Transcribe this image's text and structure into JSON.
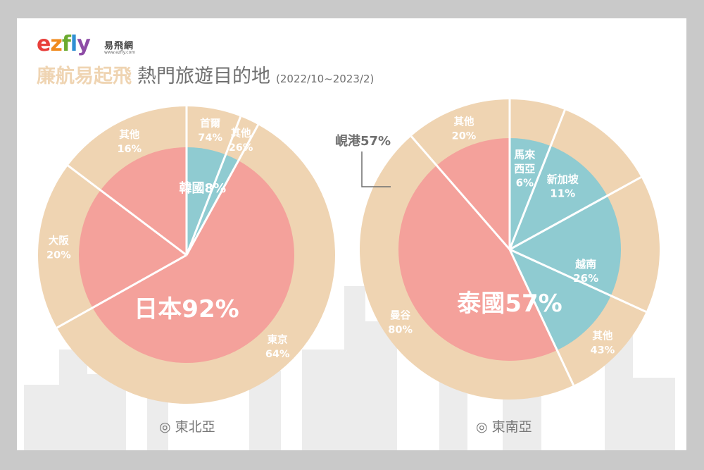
{
  "brand": {
    "logo_text": "ezfly",
    "logo_zh": "易飛網",
    "logo_url": "www.ezfly.com",
    "letter_colors": [
      "#e83f3b",
      "#f08a1c",
      "#6aaa2e",
      "#2f8fd2",
      "#8e4ca6"
    ]
  },
  "title": {
    "accent": "廉航易起飛",
    "main": "熱門旅遊目的地",
    "period": "(2022/10~2023/2)"
  },
  "colors": {
    "outer": "#efd4b2",
    "main": "#f4a19b",
    "other": "#8fcbd1",
    "divider": "#ffffff"
  },
  "chart_data": [
    {
      "type": "pie",
      "region": "◎ 東北亞",
      "inner": [
        {
          "name": "日本",
          "value": 92,
          "label": "日本92%"
        },
        {
          "name": "韓國",
          "value": 8,
          "label": "韓國8%"
        }
      ],
      "outer": [
        {
          "parent": "日本",
          "name": "東京",
          "value": 64,
          "label": "64%"
        },
        {
          "parent": "日本",
          "name": "大阪",
          "value": 20,
          "label": "20%"
        },
        {
          "parent": "日本",
          "name": "其他",
          "value": 16,
          "label": "16%"
        },
        {
          "parent": "韓國",
          "name": "首爾",
          "value": 74,
          "label": "74%"
        },
        {
          "parent": "韓國",
          "name": "其他",
          "value": 26,
          "label": "26%"
        }
      ]
    },
    {
      "type": "pie",
      "region": "◎ 東南亞",
      "inner": [
        {
          "name": "泰國",
          "value": 57,
          "label": "泰國57%"
        },
        {
          "name": "越南",
          "value": 26,
          "label": "26%"
        },
        {
          "name": "新加坡",
          "value": 11,
          "label": "11%"
        },
        {
          "name": "馬來西亞",
          "name_lines": [
            "馬來",
            "西亞"
          ],
          "value": 6,
          "label": "6%"
        }
      ],
      "outer": [
        {
          "parent": "泰國",
          "name": "曼谷",
          "value": 80,
          "label": "80%"
        },
        {
          "parent": "泰國",
          "name": "其他",
          "value": 20,
          "label": "20%"
        },
        {
          "parent": "越南",
          "name": "峴港",
          "value": 57,
          "label": "57%"
        },
        {
          "parent": "越南",
          "name": "其他",
          "value": 43,
          "label": "43%"
        }
      ],
      "callout": {
        "name": "峴港",
        "value": "57%"
      }
    }
  ]
}
